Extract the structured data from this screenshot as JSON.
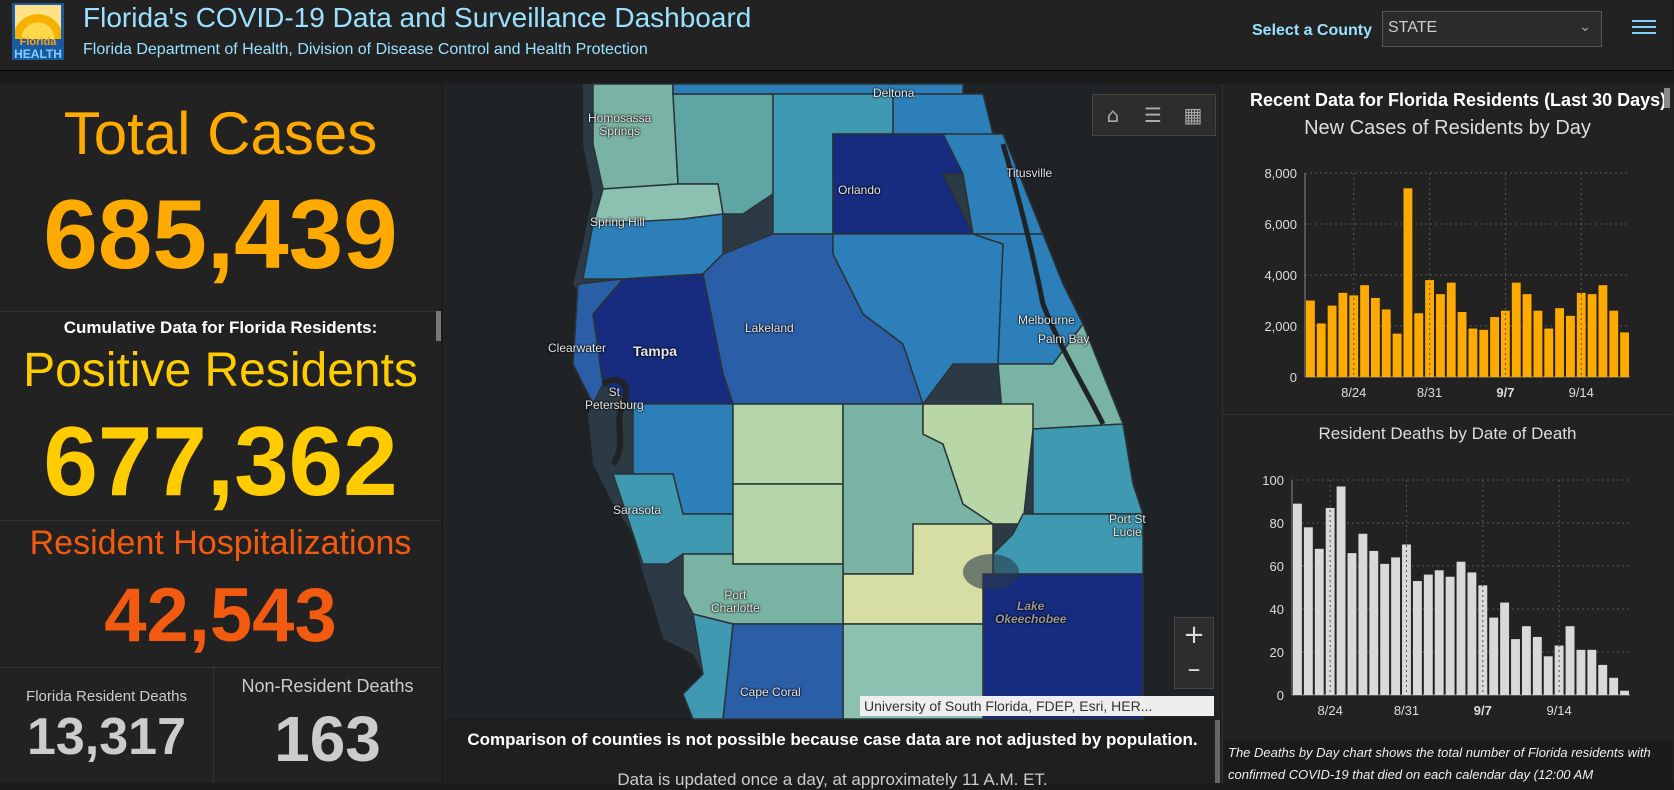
{
  "header": {
    "logo_text_top": "Florida",
    "logo_text_bottom": "HEALTH",
    "title": "Florida's COVID-19 Data and Surveillance Dashboard",
    "subtitle": "Florida Department of Health, Division of Disease Control and Health Protection",
    "county_label": "Select a County",
    "county_value": "STATE"
  },
  "stats": {
    "total_cases_label": "Total Cases",
    "total_cases": "685,439",
    "cumulative_label": "Cumulative Data for Florida Residents:",
    "positive_label": "Positive Residents",
    "positive": "677,362",
    "hosp_label": "Resident Hospitalizations",
    "hosp": "42,543",
    "res_deaths_label": "Florida Resident Deaths",
    "res_deaths": "13,317",
    "nonres_deaths_label": "Non-Resident Deaths",
    "nonres_deaths": "163"
  },
  "map": {
    "labels": {
      "deltona": "Deltona",
      "homosassa": "Homosassa\nSprings",
      "orlando": "Orlando",
      "titusville": "Titusville",
      "spring_hill": "Spring Hill",
      "lakeland": "Lakeland",
      "melbourne": "Melbourne",
      "palm_bay": "Palm Bay",
      "clearwater": "Clearwater",
      "tampa": "Tampa",
      "st_pete": "St\nPetersburg",
      "sarasota": "Sarasota",
      "port_st_lucie": "Port St\nLucie",
      "port_charlotte": "Port\nCharlotte",
      "lake_okeechobee": "Lake\nOkeechobee",
      "cape_coral": "Cape Coral"
    },
    "attribution": "University of South Florida, FDEP, Esri, HER...",
    "note": "Comparison of counties is not possible because case data are not adjusted by population.",
    "update_note": "Data is updated once a day, at approximately 11 A.M. ET."
  },
  "right_panel": {
    "recent_title": "Recent Data for Florida Residents (Last 30 Days)",
    "death_note": "The Deaths by Day chart shows the total number of Florida residents with confirmed COVID-19 that died on each calendar day (12:00 AM"
  },
  "colors": {
    "total": "#ffaa00",
    "positive": "#ffcc00",
    "hosp": "#f25a0f",
    "cases_bar": "#ffaa00",
    "deaths_bar": "#d9d9d9"
  },
  "chart_data": [
    {
      "type": "bar",
      "title": "New Cases of Residents by Day",
      "x_ticks": [
        "8/24",
        "8/31",
        "9/7",
        "9/14"
      ],
      "ylim": [
        0,
        8000
      ],
      "y_ticks": [
        "0",
        "2,000",
        "4,000",
        "6,000",
        "8,000"
      ],
      "values": [
        3000,
        2100,
        2800,
        3300,
        3200,
        3600,
        3100,
        2650,
        1700,
        7400,
        2500,
        3800,
        3250,
        3700,
        2550,
        1900,
        1850,
        2350,
        2600,
        3700,
        3250,
        2600,
        1900,
        2700,
        2400,
        3300,
        3250,
        3600,
        2600,
        1750
      ],
      "grid": true
    },
    {
      "type": "bar",
      "title": "Resident Deaths by Date of Death",
      "x_ticks": [
        "8/24",
        "8/31",
        "9/7",
        "9/14"
      ],
      "ylim": [
        0,
        100
      ],
      "y_ticks": [
        "0",
        "20",
        "40",
        "60",
        "80",
        "100"
      ],
      "values": [
        89,
        78,
        68,
        87,
        97,
        66,
        75,
        67,
        61,
        64,
        70,
        53,
        56,
        58,
        55,
        62,
        57,
        51,
        36,
        43,
        26,
        32,
        27,
        18,
        23,
        32,
        21,
        21,
        14,
        8,
        2
      ],
      "grid": true
    }
  ]
}
